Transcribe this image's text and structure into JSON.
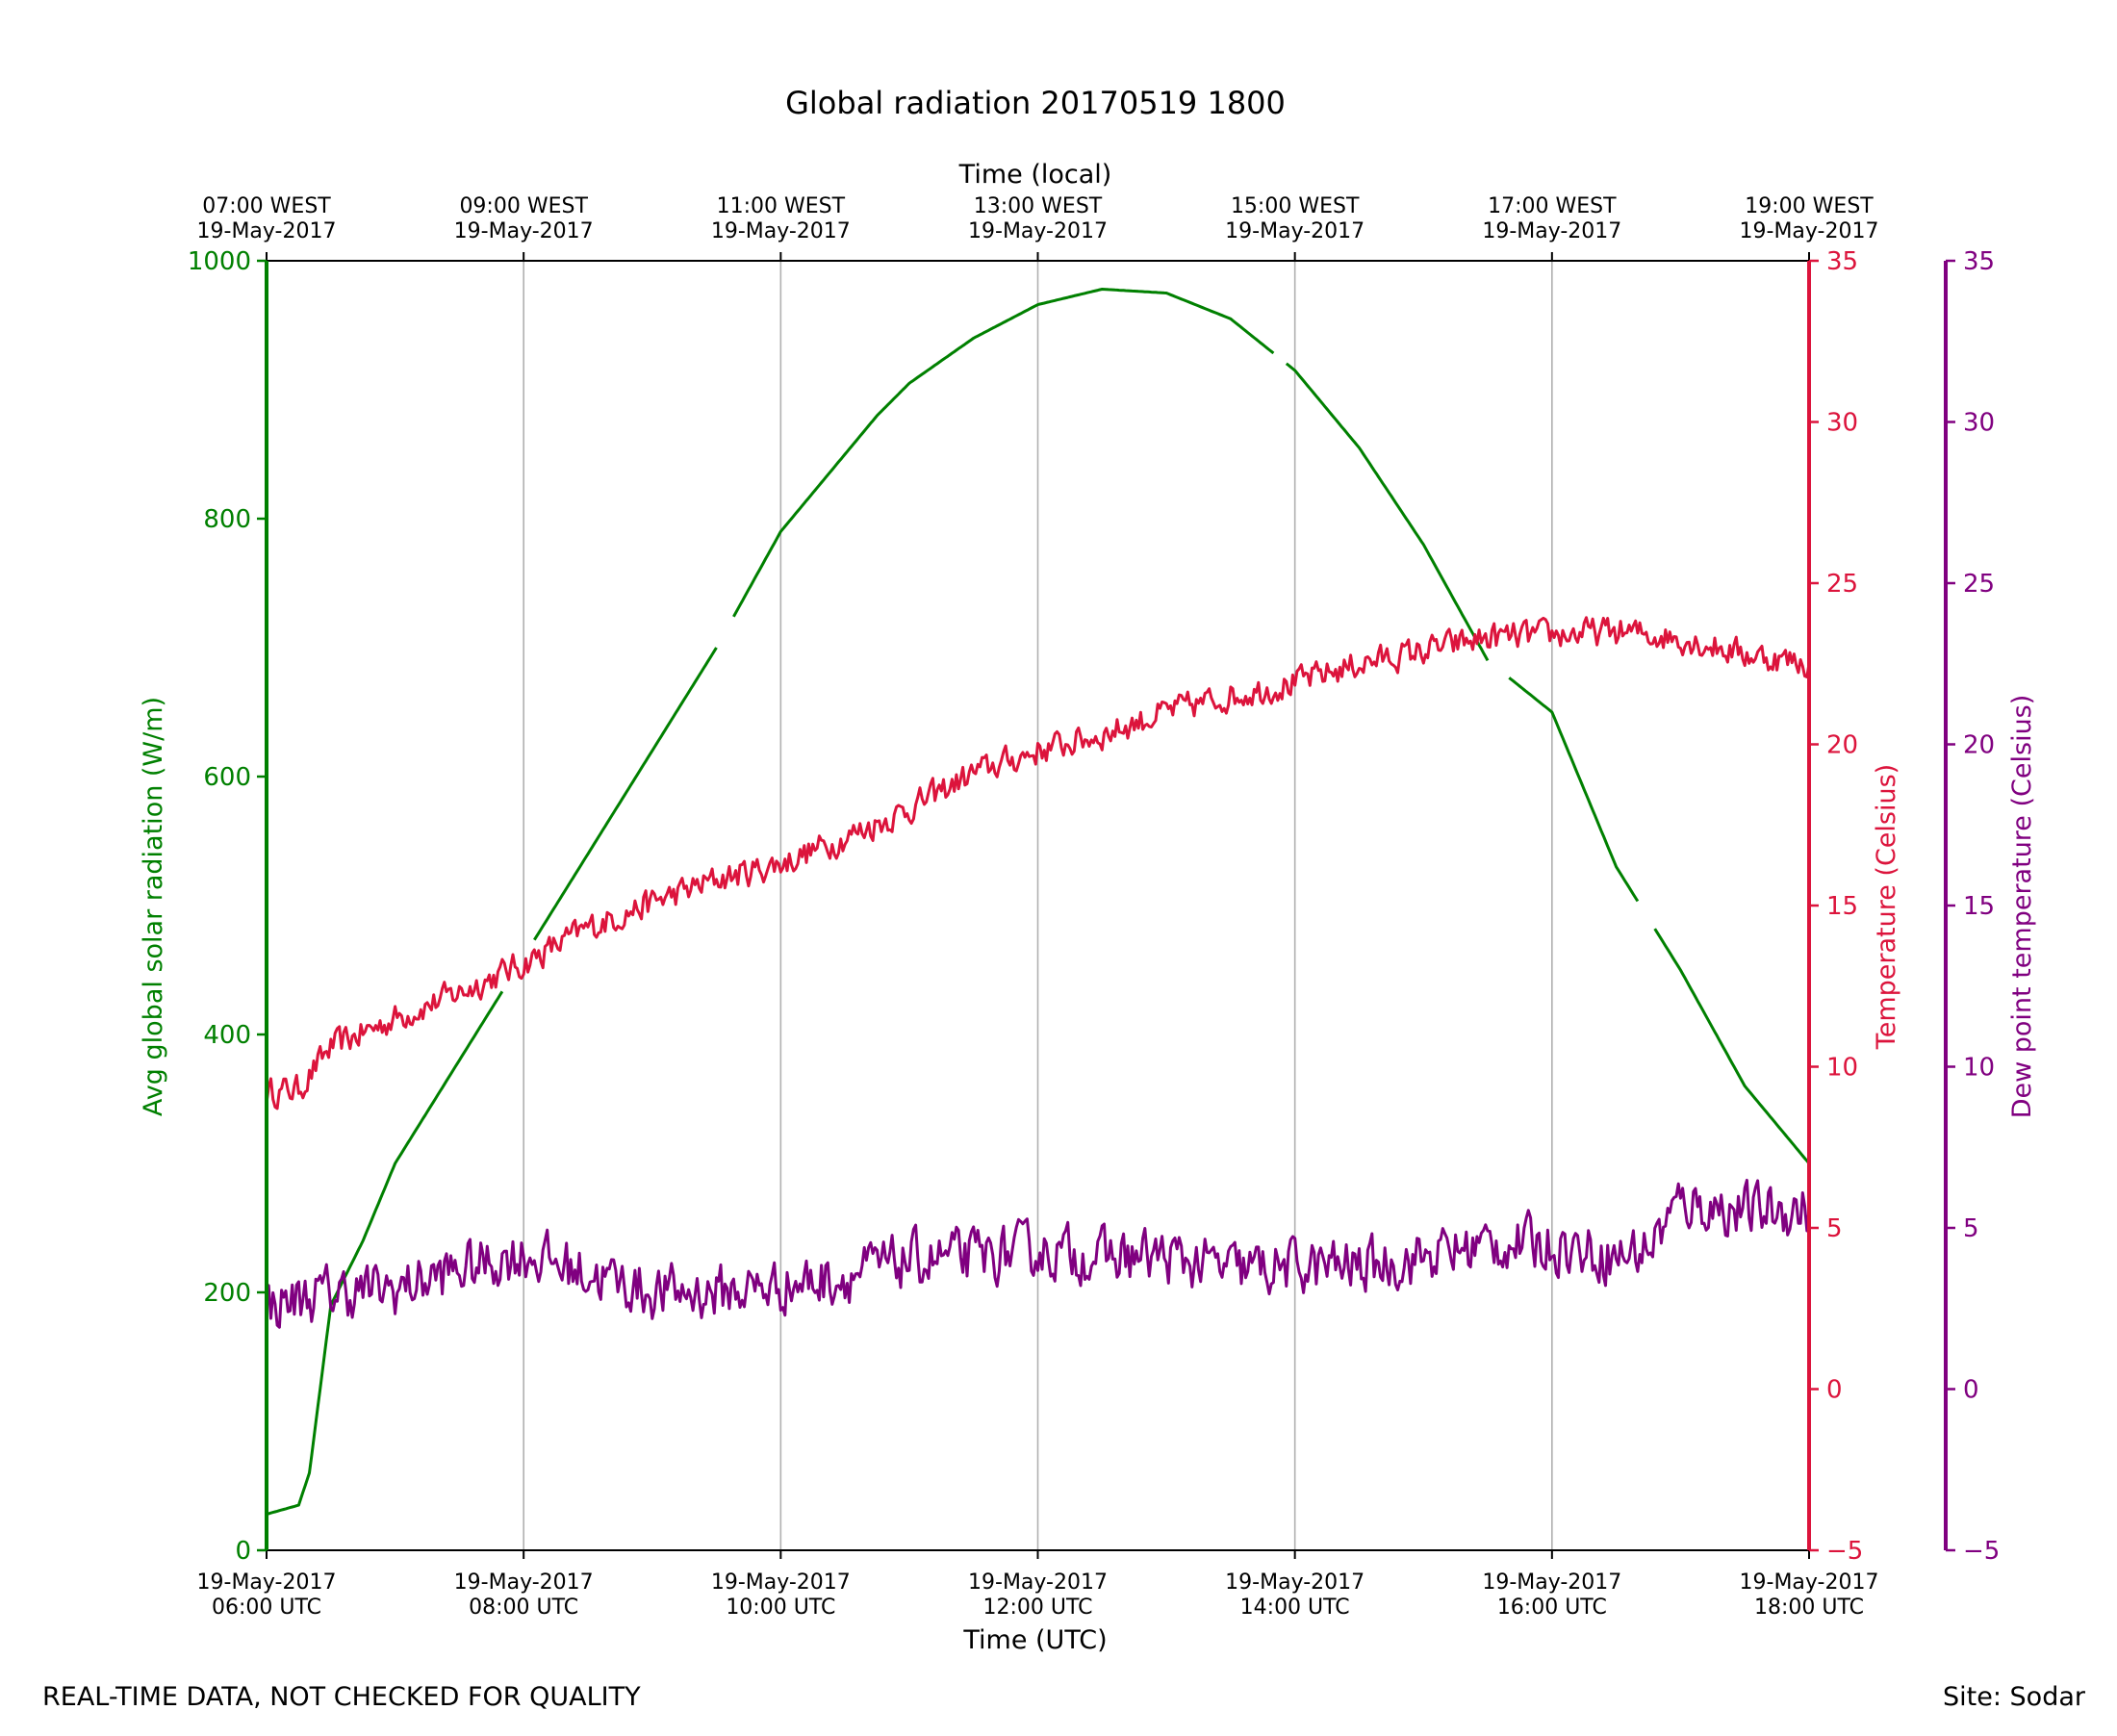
{
  "chart_data": {
    "type": "line",
    "title": "Global radiation 20170519 1800",
    "xlabel": "Time (UTC)",
    "x2label": "Time (local)",
    "xlim": [
      "2017-05-19T06:00Z",
      "2017-05-19T18:00Z"
    ],
    "x_ticks_bottom": [
      {
        "line1": "19-May-2017",
        "line2": "06:00 UTC"
      },
      {
        "line1": "19-May-2017",
        "line2": "08:00 UTC"
      },
      {
        "line1": "19-May-2017",
        "line2": "10:00 UTC"
      },
      {
        "line1": "19-May-2017",
        "line2": "12:00 UTC"
      },
      {
        "line1": "19-May-2017",
        "line2": "14:00 UTC"
      },
      {
        "line1": "19-May-2017",
        "line2": "16:00 UTC"
      },
      {
        "line1": "19-May-2017",
        "line2": "18:00 UTC"
      }
    ],
    "x_ticks_top": [
      {
        "line1": "07:00 WEST",
        "line2": "19-May-2017"
      },
      {
        "line1": "09:00 WEST",
        "line2": "19-May-2017"
      },
      {
        "line1": "11:00 WEST",
        "line2": "19-May-2017"
      },
      {
        "line1": "13:00 WEST",
        "line2": "19-May-2017"
      },
      {
        "line1": "15:00 WEST",
        "line2": "19-May-2017"
      },
      {
        "line1": "17:00 WEST",
        "line2": "19-May-2017"
      },
      {
        "line1": "19:00 WEST",
        "line2": "19-May-2017"
      }
    ],
    "grid": "vertical",
    "axes": {
      "radiation": {
        "label": "Avg global solar radiation (W/m)",
        "ylim": [
          0,
          1000
        ],
        "ticks": [
          "0",
          "200",
          "400",
          "600",
          "800",
          "1000"
        ],
        "color": "#008000"
      },
      "temperature": {
        "label": "Temperature (Celsius)",
        "ylim": [
          -5,
          35
        ],
        "ticks": [
          "−5",
          "0",
          "5",
          "10",
          "15",
          "20",
          "25",
          "30",
          "35"
        ],
        "color": "#dc143c"
      },
      "dewpoint": {
        "label": "Dew point temperature (Celsius)",
        "ylim": [
          -5,
          35
        ],
        "ticks": [
          "−5",
          "0",
          "5",
          "10",
          "15",
          "20",
          "25",
          "30",
          "35"
        ],
        "color": "#800080"
      }
    },
    "series": [
      {
        "axis": "radiation",
        "x": [
          "2017-05-19T06:00Z",
          "2017-05-19T06:15Z",
          "2017-05-19T06:20Z",
          "2017-05-19T06:30Z",
          "2017-05-19T06:45Z",
          "2017-05-19T07:00Z",
          "2017-05-19T07:30Z",
          "2017-05-19T08:00Z",
          "2017-05-19T08:30Z",
          "2017-05-19T09:00Z",
          "2017-05-19T09:30Z",
          "2017-05-19T10:00Z",
          "2017-05-19T10:30Z",
          "2017-05-19T10:45Z",
          "2017-05-19T11:00Z",
          "2017-05-19T11:30Z",
          "2017-05-19T12:00Z",
          "2017-05-19T12:30Z",
          "2017-05-19T13:00Z",
          "2017-05-19T13:30Z",
          "2017-05-19T14:00Z",
          "2017-05-19T14:30Z",
          "2017-05-19T15:00Z",
          "2017-05-19T15:30Z",
          "2017-05-19T16:00Z",
          "2017-05-19T16:30Z",
          "2017-05-19T17:00Z",
          "2017-05-19T17:30Z",
          "2017-05-19T18:00Z"
        ],
        "values": [
          28,
          35,
          60,
          190,
          240,
          300,
          380,
          460,
          540,
          620,
          700,
          790,
          850,
          880,
          905,
          940,
          966,
          978,
          975,
          955,
          915,
          855,
          780,
          690,
          650,
          530,
          450,
          360,
          300
        ],
        "gaps": [
          [
            "2017-05-19T07:50Z",
            "2017-05-19T08:05Z"
          ],
          [
            "2017-05-19T09:30Z",
            "2017-05-19T09:38Z"
          ],
          [
            "2017-05-19T13:50Z",
            "2017-05-19T13:56Z"
          ],
          [
            "2017-05-19T15:30Z",
            "2017-05-19T15:40Z"
          ],
          [
            "2017-05-19T16:40Z",
            "2017-05-19T16:48Z"
          ]
        ]
      },
      {
        "axis": "temperature",
        "x": [
          "2017-05-19T06:00Z",
          "2017-05-19T06:15Z",
          "2017-05-19T06:30Z",
          "2017-05-19T07:00Z",
          "2017-05-19T07:30Z",
          "2017-05-19T08:00Z",
          "2017-05-19T08:30Z",
          "2017-05-19T09:00Z",
          "2017-05-19T09:30Z",
          "2017-05-19T10:00Z",
          "2017-05-19T10:30Z",
          "2017-05-19T11:00Z",
          "2017-05-19T11:30Z",
          "2017-05-19T12:00Z",
          "2017-05-19T12:30Z",
          "2017-05-19T13:00Z",
          "2017-05-19T13:30Z",
          "2017-05-19T14:00Z",
          "2017-05-19T14:30Z",
          "2017-05-19T15:00Z",
          "2017-05-19T15:30Z",
          "2017-05-19T16:00Z",
          "2017-05-19T16:30Z",
          "2017-05-19T17:00Z",
          "2017-05-19T17:30Z",
          "2017-05-19T18:00Z"
        ],
        "values": [
          9.2,
          9.3,
          10.6,
          11.5,
          12.3,
          13.2,
          14.3,
          15.1,
          15.8,
          16.3,
          17.1,
          18.0,
          19.1,
          19.8,
          20.3,
          21.0,
          21.5,
          21.9,
          22.5,
          22.9,
          23.3,
          23.4,
          23.5,
          23.3,
          22.8,
          22.5
        ],
        "noise": 0.45
      },
      {
        "axis": "dewpoint",
        "x": [
          "2017-05-19T06:00Z",
          "2017-05-19T06:30Z",
          "2017-05-19T07:00Z",
          "2017-05-19T07:30Z",
          "2017-05-19T08:00Z",
          "2017-05-19T08:30Z",
          "2017-05-19T09:00Z",
          "2017-05-19T09:30Z",
          "2017-05-19T10:00Z",
          "2017-05-19T10:30Z",
          "2017-05-19T11:00Z",
          "2017-05-19T11:30Z",
          "2017-05-19T12:00Z",
          "2017-05-19T12:30Z",
          "2017-05-19T13:00Z",
          "2017-05-19T13:30Z",
          "2017-05-19T14:00Z",
          "2017-05-19T14:30Z",
          "2017-05-19T15:00Z",
          "2017-05-19T15:30Z",
          "2017-05-19T16:00Z",
          "2017-05-19T16:30Z",
          "2017-05-19T16:45Z",
          "2017-05-19T17:00Z",
          "2017-05-19T17:30Z",
          "2017-05-19T18:00Z"
        ],
        "values": [
          2.6,
          3.0,
          3.1,
          3.7,
          4.2,
          3.6,
          3.0,
          3.0,
          3.2,
          3.5,
          4.0,
          4.1,
          4.3,
          4.1,
          4.1,
          3.7,
          3.8,
          3.8,
          4.1,
          4.5,
          4.5,
          4.1,
          4.4,
          5.8,
          5.5,
          5.6
        ],
        "noise": 0.85
      }
    ],
    "footer_left": "REAL-TIME DATA, NOT CHECKED FOR QUALITY",
    "footer_right": "Site: Sodar"
  }
}
